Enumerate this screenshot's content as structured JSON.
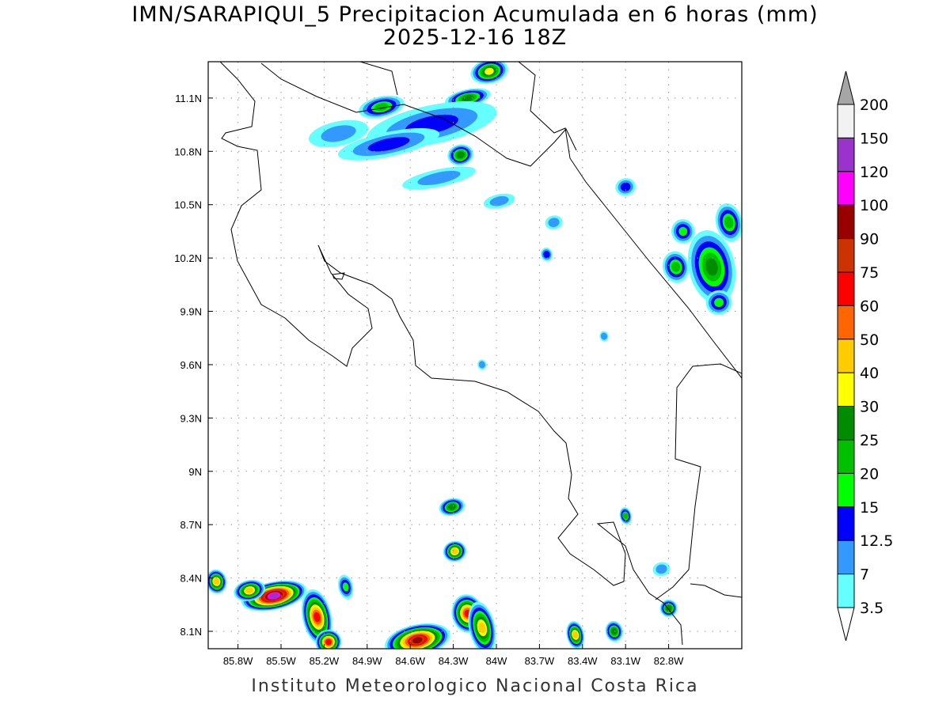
{
  "title": "IMN/SARAPIQUI_5 Precipitacion Acumulada en 6 horas (mm)",
  "subtitle": "2025-12-16 18Z",
  "footer": "Instituto Meteorologico Nacional Costa Rica",
  "lat_labels": [
    "11.1N",
    "10.8N",
    "10.5N",
    "10.2N",
    "9.9N",
    "9.6N",
    "9.3N",
    "9N",
    "8.7N",
    "8.4N",
    "8.1N"
  ],
  "lat_values": [
    11.1,
    10.8,
    10.5,
    10.2,
    9.9,
    9.6,
    9.3,
    9.0,
    8.7,
    8.4,
    8.1
  ],
  "lon_labels": [
    "85.8W",
    "85.5W",
    "85.2W",
    "84.9W",
    "84.6W",
    "84.3W",
    "84W",
    "83.7W",
    "83.4W",
    "83.1W",
    "82.8W"
  ],
  "lon_values": [
    -85.8,
    -85.5,
    -85.2,
    -84.9,
    -84.6,
    -84.3,
    -84.0,
    -83.7,
    -83.4,
    -83.1,
    -82.8
  ],
  "colorbar": {
    "labels": [
      "200",
      "150",
      "120",
      "100",
      "90",
      "75",
      "60",
      "50",
      "40",
      "30",
      "25",
      "20",
      "15",
      "12.5",
      "7",
      "3.5"
    ],
    "colors": [
      "#f2f2f2",
      "#9933cc",
      "#ff00ff",
      "#990000",
      "#cc3300",
      "#ff0000",
      "#ff6600",
      "#ffcc00",
      "#ffff00",
      "#008c00",
      "#00c000",
      "#00ff00",
      "#0000ff",
      "#3399ff",
      "#66ffff"
    ],
    "over_color": "#a6a6a6",
    "under_color": "#ffffff"
  },
  "precip_cells": [
    {
      "lon": -85.55,
      "lat": 8.3,
      "max": 120,
      "rx": 0.22,
      "ry": 0.07
    },
    {
      "lon": -85.72,
      "lat": 8.33,
      "max": 40,
      "rx": 0.1,
      "ry": 0.05
    },
    {
      "lon": -85.95,
      "lat": 8.38,
      "max": 40,
      "rx": 0.06,
      "ry": 0.06
    },
    {
      "lon": -85.25,
      "lat": 8.18,
      "max": 60,
      "rx": 0.09,
      "ry": 0.15
    },
    {
      "lon": -85.17,
      "lat": 8.04,
      "max": 60,
      "rx": 0.08,
      "ry": 0.06
    },
    {
      "lon": -84.55,
      "lat": 8.05,
      "max": 90,
      "rx": 0.22,
      "ry": 0.08
    },
    {
      "lon": -84.2,
      "lat": 8.2,
      "max": 60,
      "rx": 0.1,
      "ry": 0.1
    },
    {
      "lon": -84.1,
      "lat": 8.12,
      "max": 40,
      "rx": 0.08,
      "ry": 0.14
    },
    {
      "lon": -84.31,
      "lat": 8.8,
      "max": 25,
      "rx": 0.08,
      "ry": 0.04
    },
    {
      "lon": -84.29,
      "lat": 8.55,
      "max": 40,
      "rx": 0.07,
      "ry": 0.05
    },
    {
      "lon": -83.45,
      "lat": 8.08,
      "max": 40,
      "rx": 0.05,
      "ry": 0.07
    },
    {
      "lon": -83.18,
      "lat": 8.1,
      "max": 25,
      "rx": 0.05,
      "ry": 0.05
    },
    {
      "lon": -82.8,
      "lat": 8.23,
      "max": 25,
      "rx": 0.05,
      "ry": 0.04
    },
    {
      "lon": -83.1,
      "lat": 8.75,
      "max": 20,
      "rx": 0.03,
      "ry": 0.04
    },
    {
      "lon": -84.2,
      "lat": 11.1,
      "max": 25,
      "rx": 0.15,
      "ry": 0.04
    },
    {
      "lon": -84.05,
      "lat": 11.25,
      "max": 30,
      "rx": 0.12,
      "ry": 0.06
    },
    {
      "lon": -84.45,
      "lat": 10.95,
      "max": 12.5,
      "rx": 0.45,
      "ry": 0.1
    },
    {
      "lon": -84.25,
      "lat": 10.78,
      "max": 25,
      "rx": 0.08,
      "ry": 0.05
    },
    {
      "lon": -84.8,
      "lat": 11.05,
      "max": 20,
      "rx": 0.15,
      "ry": 0.05
    },
    {
      "lon": -84.75,
      "lat": 10.84,
      "max": 12.5,
      "rx": 0.35,
      "ry": 0.06
    },
    {
      "lon": -85.1,
      "lat": 10.9,
      "max": 7,
      "rx": 0.2,
      "ry": 0.06
    },
    {
      "lon": -84.4,
      "lat": 10.65,
      "max": 7,
      "rx": 0.25,
      "ry": 0.04
    },
    {
      "lon": -82.5,
      "lat": 10.15,
      "max": 25,
      "rx": 0.15,
      "ry": 0.2
    },
    {
      "lon": -82.75,
      "lat": 10.15,
      "max": 20,
      "rx": 0.08,
      "ry": 0.08
    },
    {
      "lon": -82.38,
      "lat": 10.4,
      "max": 20,
      "rx": 0.08,
      "ry": 0.1
    },
    {
      "lon": -82.7,
      "lat": 10.35,
      "max": 15,
      "rx": 0.07,
      "ry": 0.06
    },
    {
      "lon": -82.45,
      "lat": 9.95,
      "max": 15,
      "rx": 0.08,
      "ry": 0.06
    },
    {
      "lon": -83.1,
      "lat": 10.6,
      "max": 12.5,
      "rx": 0.06,
      "ry": 0.04
    },
    {
      "lon": -83.6,
      "lat": 10.4,
      "max": 7,
      "rx": 0.05,
      "ry": 0.03
    },
    {
      "lon": -83.65,
      "lat": 10.22,
      "max": 12.5,
      "rx": 0.03,
      "ry": 0.03
    },
    {
      "lon": -83.98,
      "lat": 10.52,
      "max": 7,
      "rx": 0.1,
      "ry": 0.03
    },
    {
      "lon": -84.1,
      "lat": 9.6,
      "max": 7,
      "rx": 0.02,
      "ry": 0.02
    },
    {
      "lon": -83.25,
      "lat": 9.76,
      "max": 7,
      "rx": 0.02,
      "ry": 0.02
    },
    {
      "lon": -82.85,
      "lat": 8.45,
      "max": 7,
      "rx": 0.05,
      "ry": 0.03
    },
    {
      "lon": -85.05,
      "lat": 8.35,
      "max": 15,
      "rx": 0.04,
      "ry": 0.06
    }
  ]
}
